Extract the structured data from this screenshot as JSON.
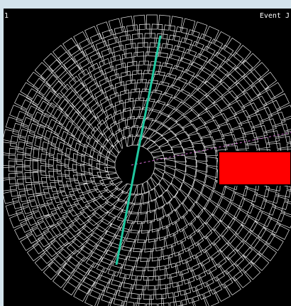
{
  "labels": {
    "left": "1",
    "right": "Event J"
  }
}
